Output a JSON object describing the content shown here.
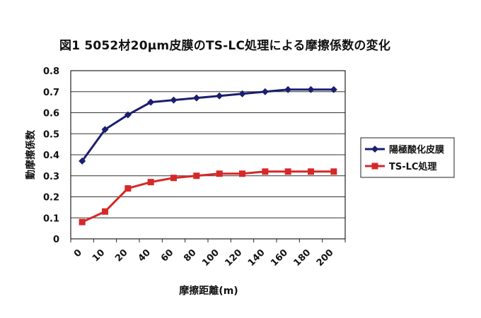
{
  "chart_data": {
    "type": "line",
    "title": "図1 5052材20μm皮膜のTS-LC処理による摩擦係数の変化",
    "xlabel": "摩擦距離(m)",
    "ylabel": "動摩擦係数",
    "categories": [
      "0",
      "10",
      "20",
      "40",
      "60",
      "80",
      "100",
      "120",
      "140",
      "160",
      "180",
      "200"
    ],
    "ylim": [
      0,
      0.8
    ],
    "yticks": [
      "0",
      "0.1",
      "0.2",
      "0.3",
      "0.4",
      "0.5",
      "0.6",
      "0.7",
      "0.8"
    ],
    "grid": true,
    "legend": "right",
    "series": [
      {
        "name": "陽極酸化皮膜",
        "color": "#1b1f6e",
        "marker": "diamond",
        "values": [
          0.37,
          0.52,
          0.59,
          0.65,
          0.66,
          0.67,
          0.68,
          0.69,
          0.7,
          0.71,
          0.71,
          0.71
        ]
      },
      {
        "name": "TS-LC処理",
        "color": "#d62828",
        "marker": "square",
        "values": [
          0.08,
          0.13,
          0.24,
          0.27,
          0.29,
          0.3,
          0.31,
          0.31,
          0.32,
          0.32,
          0.32,
          0.32
        ]
      }
    ]
  }
}
